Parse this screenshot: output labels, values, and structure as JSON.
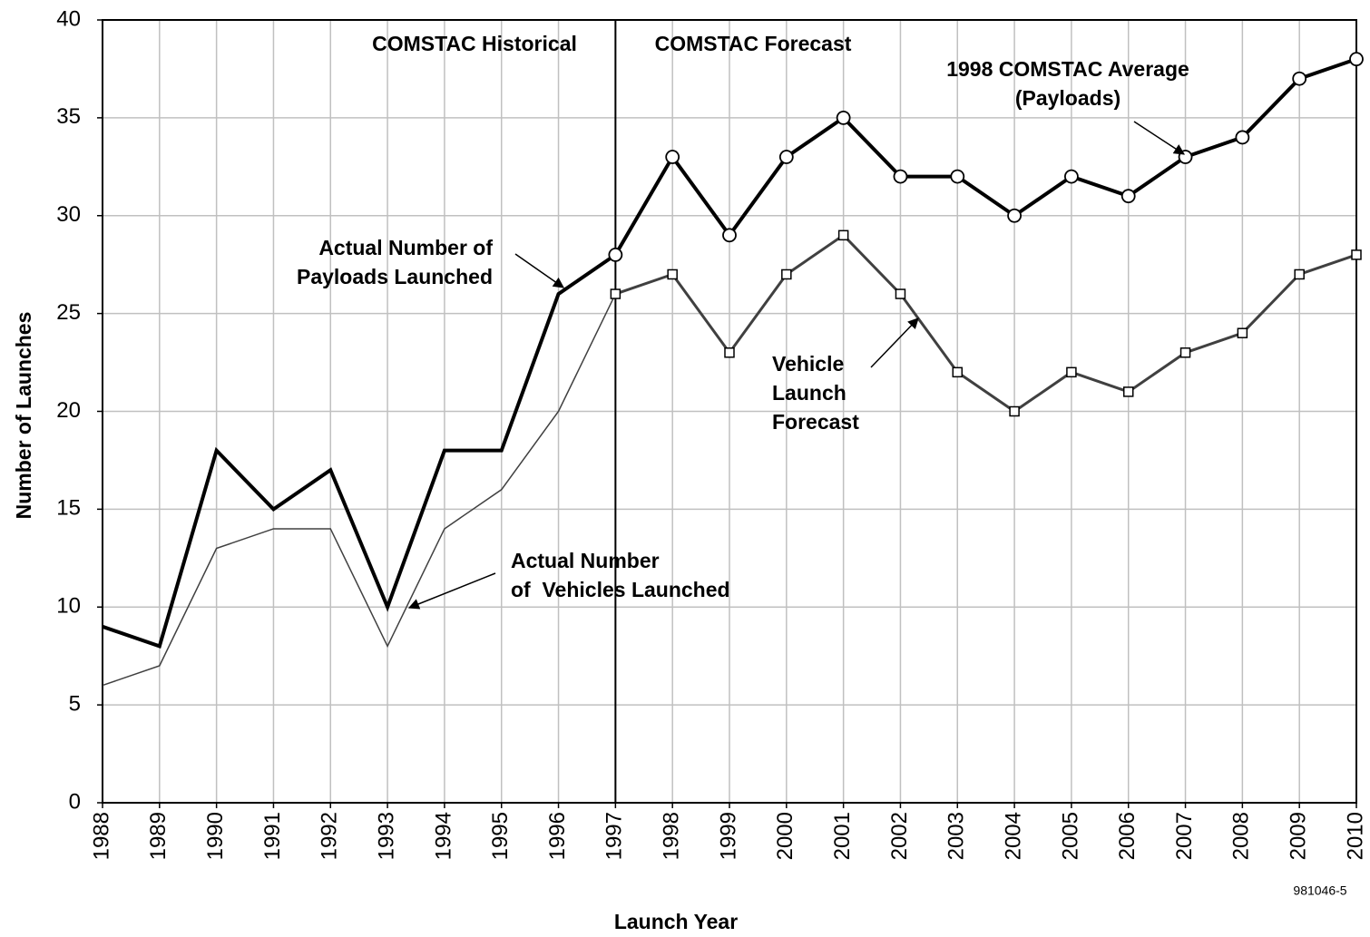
{
  "chart_data": {
    "type": "line",
    "x_label": "Launch Year",
    "y_label": "Number of Launches",
    "x": [
      1988,
      1989,
      1990,
      1991,
      1992,
      1993,
      1994,
      1995,
      1996,
      1997,
      1998,
      1999,
      2000,
      2001,
      2002,
      2003,
      2004,
      2005,
      2006,
      2007,
      2008,
      2009,
      2010
    ],
    "xlim": [
      1988,
      2010
    ],
    "xticks": [
      1988,
      1989,
      1990,
      1991,
      1992,
      1993,
      1994,
      1995,
      1996,
      1997,
      1998,
      1999,
      2000,
      2001,
      2002,
      2003,
      2004,
      2005,
      2006,
      2007,
      2008,
      2009,
      2010
    ],
    "ylim": [
      0,
      40
    ],
    "yticks": [
      0,
      5,
      10,
      15,
      20,
      25,
      30,
      35,
      40
    ],
    "grid": true,
    "divider": 1997,
    "series": [
      {
        "color": "#000000",
        "width": 4,
        "marker": "none",
        "values": [
          9,
          8,
          18,
          15,
          17,
          10,
          18,
          18,
          26,
          28,
          null,
          null,
          null,
          null,
          null,
          null,
          null,
          null,
          null,
          null,
          null,
          null,
          null
        ]
      },
      {
        "color": "#404040",
        "width": 1.5,
        "marker": "none",
        "values": [
          6,
          7,
          13,
          14,
          14,
          8,
          14,
          16,
          20,
          26,
          null,
          null,
          null,
          null,
          null,
          null,
          null,
          null,
          null,
          null,
          null,
          null,
          null
        ]
      },
      {
        "color": "#000000",
        "width": 4,
        "marker": "circle",
        "values": [
          null,
          null,
          null,
          null,
          null,
          null,
          null,
          null,
          null,
          28,
          33,
          29,
          33,
          35,
          32,
          32,
          30,
          32,
          31,
          33,
          34,
          37,
          38
        ]
      },
      {
        "color": "#404040",
        "width": 3,
        "marker": "square",
        "values": [
          null,
          null,
          null,
          null,
          null,
          null,
          null,
          null,
          null,
          26,
          27,
          23,
          27,
          29,
          26,
          22,
          20,
          22,
          21,
          23,
          24,
          27,
          28
        ]
      }
    ],
    "annotations": [
      [
        "COMSTAC Historical"
      ],
      [
        "COMSTAC Forecast"
      ],
      [
        "1998 COMSTAC Average",
        "(Payloads)"
      ],
      [
        "Actual Number of",
        "Payloads Launched"
      ],
      [
        "Vehicle",
        "Launch",
        "Forecast"
      ],
      [
        "Actual Number",
        "of  Vehicles Launched"
      ]
    ],
    "footnote": "981046-5"
  }
}
